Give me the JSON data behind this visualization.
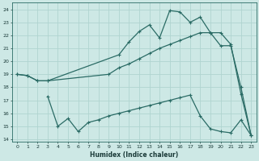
{
  "xlabel": "Humidex (Indice chaleur)",
  "bg_color": "#cde8e5",
  "grid_color": "#b0d4d0",
  "line_color": "#2a6b65",
  "xlim": [
    -0.5,
    23.5
  ],
  "ylim": [
    13.8,
    24.5
  ],
  "yticks": [
    14,
    15,
    16,
    17,
    18,
    19,
    20,
    21,
    22,
    23,
    24
  ],
  "xticks": [
    0,
    1,
    2,
    3,
    4,
    5,
    6,
    7,
    8,
    9,
    10,
    11,
    12,
    13,
    14,
    15,
    16,
    17,
    18,
    19,
    20,
    21,
    22,
    23
  ],
  "line1_x": [
    0,
    1,
    2,
    3,
    9,
    10,
    11,
    12,
    13,
    14,
    15,
    16,
    17,
    18,
    19,
    20,
    21,
    22,
    23
  ],
  "line1_y": [
    19.0,
    18.9,
    18.5,
    18.5,
    19.0,
    19.5,
    19.8,
    20.2,
    20.6,
    21.0,
    21.3,
    21.6,
    21.9,
    22.2,
    22.2,
    22.2,
    21.3,
    17.5,
    14.3
  ],
  "line2_x": [
    0,
    1,
    2,
    3,
    10,
    11,
    12,
    13,
    14,
    15,
    16,
    17,
    18,
    19,
    20,
    21,
    22,
    23
  ],
  "line2_y": [
    19.0,
    18.9,
    18.5,
    18.5,
    20.5,
    21.5,
    22.3,
    22.8,
    21.8,
    23.9,
    23.8,
    23.0,
    23.4,
    22.2,
    21.2,
    21.2,
    18.0,
    14.3
  ],
  "line3_x": [
    3,
    4,
    5,
    6,
    7,
    8,
    9,
    10,
    11,
    12,
    13,
    14,
    15,
    16,
    17,
    18,
    19,
    20,
    21,
    22,
    23
  ],
  "line3_y": [
    17.3,
    15.0,
    15.6,
    14.6,
    15.3,
    15.5,
    15.8,
    16.0,
    16.2,
    16.4,
    16.6,
    16.8,
    17.0,
    17.2,
    17.4,
    15.8,
    14.8,
    14.6,
    14.5,
    15.5,
    14.3
  ]
}
